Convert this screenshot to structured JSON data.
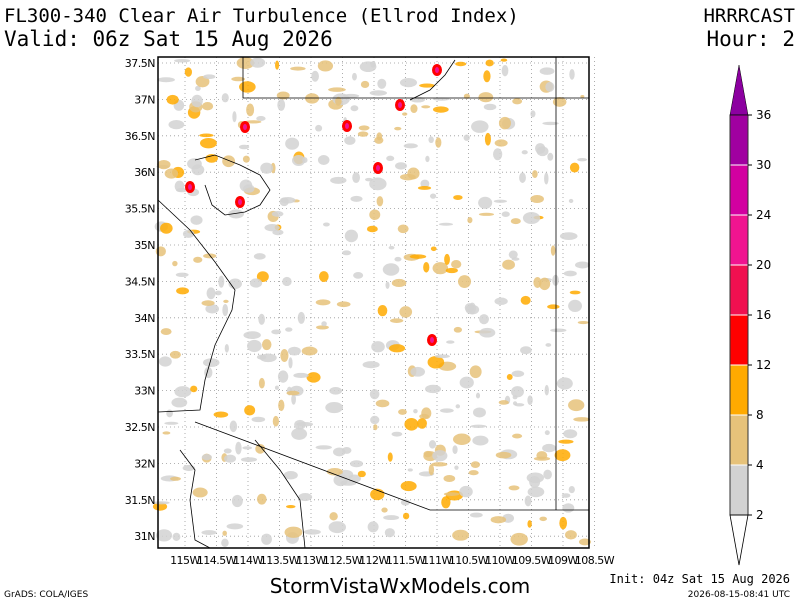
{
  "header": {
    "title": "FL300-340 Clear Air Turbulence (Ellrod Index)",
    "valid": "Valid: 06z Sat 15 Aug 2026",
    "model": "HRRRCAST",
    "hour": "Hour: 2"
  },
  "map": {
    "lat_labels": [
      "37.5N",
      "37N",
      "36.5N",
      "36N",
      "35.5N",
      "35N",
      "34.5N",
      "34N",
      "33.5N",
      "33N",
      "32.5N",
      "32N",
      "31.5N",
      "31N"
    ],
    "lon_labels": [
      "115W",
      "114.5W",
      "114W",
      "113.5W",
      "113W",
      "112.5W",
      "112W",
      "111.5W",
      "111W",
      "110.5W",
      "110W",
      "109.5W",
      "109W",
      "108.5W"
    ]
  },
  "colorbar": {
    "levels": [
      2,
      4,
      8,
      12,
      16,
      20,
      24,
      30,
      36
    ],
    "colors": [
      "#d2d2d2",
      "#e6c27a",
      "#ffaa00",
      "#ff0000",
      "#f01050",
      "#f01490",
      "#d200a0",
      "#a000a0"
    ],
    "over_color": "#8c00a0",
    "under_color": "#ffffff"
  },
  "footer": {
    "credit": "GrADS: COLA/IGES",
    "site": "StormVistaWxModels.com",
    "init": "Init: 04z Sat 15 Aug 2026",
    "stamp": "2026-08-15-08:41 UTC"
  }
}
